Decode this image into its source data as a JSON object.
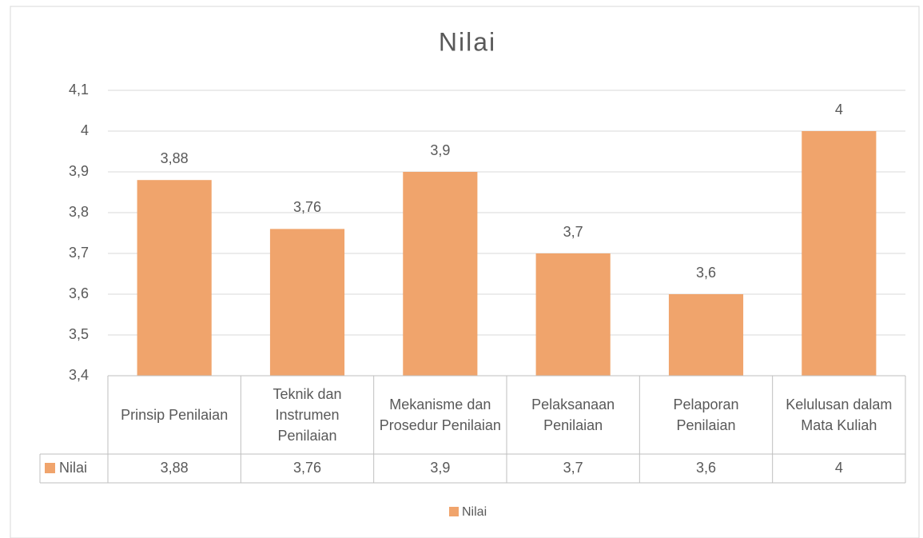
{
  "chart_data": {
    "type": "bar",
    "title": "Nilai",
    "categories": [
      "Prinsip Penilaian",
      "Teknik dan Instrumen Penilaian",
      "Mekanisme dan Prosedur Penilaian",
      "Pelaksanaan Penilaian",
      "Pelaporan Penilaian",
      "Kelulusan dalam Mata Kuliah"
    ],
    "series": [
      {
        "name": "Nilai",
        "color": "#f0a46c",
        "values": [
          3.88,
          3.76,
          3.9,
          3.7,
          3.6,
          4
        ],
        "value_labels": [
          "3,88",
          "3,76",
          "3,9",
          "3,7",
          "3,6",
          "4"
        ]
      }
    ],
    "ylim": [
      3.4,
      4.1
    ],
    "yticks": [
      {
        "value": 3.4,
        "label": "3,4"
      },
      {
        "value": 3.5,
        "label": "3,5"
      },
      {
        "value": 3.6,
        "label": "3,6"
      },
      {
        "value": 3.7,
        "label": "3,7"
      },
      {
        "value": 3.8,
        "label": "3,8"
      },
      {
        "value": 3.9,
        "label": "3,9"
      },
      4,
      {
        "value": 4.1,
        "label": "4,1"
      }
    ],
    "grid": true,
    "legend": "bottom",
    "data_table": true
  }
}
